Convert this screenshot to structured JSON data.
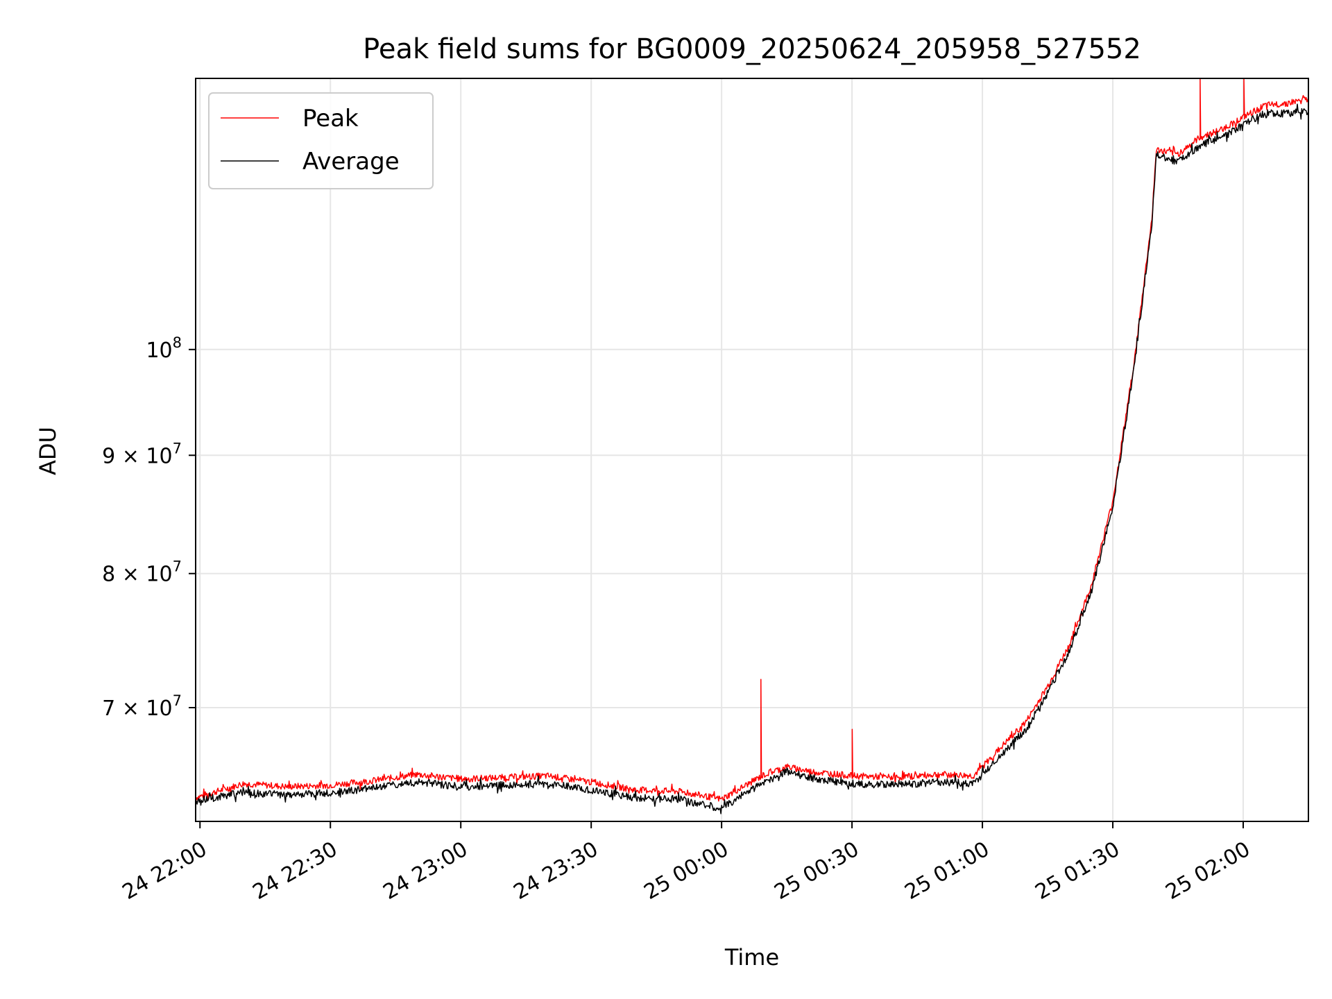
{
  "chart_data": {
    "type": "line",
    "title": "Peak field sums for BG0009_20250624_205958_527552",
    "xlabel": "Time",
    "ylabel": "ADU",
    "y_scale": "log",
    "ylim": [
      62500000,
      131000000
    ],
    "xlim": [
      "2025-06-24 21:59",
      "2025-06-25 02:15"
    ],
    "grid": true,
    "legend_position": "top-left",
    "x_ticks": [
      {
        "t": "2025-06-24 22:00",
        "label": "24 22:00"
      },
      {
        "t": "2025-06-24 22:30",
        "label": "24 22:30"
      },
      {
        "t": "2025-06-24 23:00",
        "label": "24 23:00"
      },
      {
        "t": "2025-06-24 23:30",
        "label": "24 23:30"
      },
      {
        "t": "2025-06-25 00:00",
        "label": "25 00:00"
      },
      {
        "t": "2025-06-25 00:30",
        "label": "25 00:30"
      },
      {
        "t": "2025-06-25 01:00",
        "label": "25 01:00"
      },
      {
        "t": "2025-06-25 01:30",
        "label": "25 01:30"
      },
      {
        "t": "2025-06-25 02:00",
        "label": "25 02:00"
      }
    ],
    "y_ticks": [
      {
        "value": 70000000,
        "mantissa": "7",
        "base": "10",
        "exp": "7"
      },
      {
        "value": 80000000,
        "mantissa": "8",
        "base": "10",
        "exp": "7"
      },
      {
        "value": 90000000,
        "mantissa": "9",
        "base": "10",
        "exp": "7"
      },
      {
        "value": 100000000,
        "mantissa": "",
        "base": "10",
        "exp": "8"
      }
    ],
    "series": [
      {
        "name": "Peak",
        "color": "#ff0000",
        "points": [
          [
            "2025-06-24 21:59",
            64000000
          ],
          [
            "2025-06-24 22:10",
            64900000
          ],
          [
            "2025-06-24 22:20",
            64700000
          ],
          [
            "2025-06-24 22:30",
            64800000
          ],
          [
            "2025-06-24 22:40",
            65100000
          ],
          [
            "2025-06-24 22:50",
            65500000
          ],
          [
            "2025-06-24 23:00",
            65200000
          ],
          [
            "2025-06-24 23:10",
            65300000
          ],
          [
            "2025-06-24 23:20",
            65400000
          ],
          [
            "2025-06-24 23:30",
            65000000
          ],
          [
            "2025-06-24 23:40",
            64500000
          ],
          [
            "2025-06-24 23:50",
            64400000
          ],
          [
            "2025-06-25 00:00",
            63900000
          ],
          [
            "2025-06-25 00:05",
            64700000
          ],
          [
            "2025-06-25 00:10",
            65500000
          ],
          [
            "2025-06-25 00:15",
            66000000
          ],
          [
            "2025-06-25 00:20",
            65700000
          ],
          [
            "2025-06-25 00:30",
            65400000
          ],
          [
            "2025-06-25 00:40",
            65300000
          ],
          [
            "2025-06-25 00:50",
            65500000
          ],
          [
            "2025-06-25 00:58",
            65400000
          ],
          [
            "2025-06-25 01:05",
            67500000
          ],
          [
            "2025-06-25 01:10",
            69000000
          ],
          [
            "2025-06-25 01:15",
            71500000
          ],
          [
            "2025-06-25 01:20",
            74500000
          ],
          [
            "2025-06-25 01:25",
            79000000
          ],
          [
            "2025-06-25 01:30",
            86000000
          ],
          [
            "2025-06-25 01:35",
            99000000
          ],
          [
            "2025-06-25 01:39",
            114000000
          ],
          [
            "2025-06-25 01:40",
            122000000
          ],
          [
            "2025-06-25 01:45",
            121500000
          ],
          [
            "2025-06-25 01:50",
            123500000
          ],
          [
            "2025-06-25 01:55",
            124500000
          ],
          [
            "2025-06-25 02:00",
            126000000
          ],
          [
            "2025-06-25 02:05",
            127500000
          ],
          [
            "2025-06-25 02:10",
            127800000
          ],
          [
            "2025-06-25 02:15",
            128300000
          ]
        ],
        "spikes": [
          [
            "2025-06-25 00:09",
            72000000
          ],
          [
            "2025-06-25 00:30",
            68500000
          ],
          [
            "2025-06-25 01:50",
            131000000
          ],
          [
            "2025-06-25 02:00",
            131000000
          ]
        ]
      },
      {
        "name": "Average",
        "color": "#000000",
        "points": [
          [
            "2025-06-24 21:59",
            63800000
          ],
          [
            "2025-06-24 22:10",
            64300000
          ],
          [
            "2025-06-24 22:20",
            64200000
          ],
          [
            "2025-06-24 22:30",
            64300000
          ],
          [
            "2025-06-24 22:40",
            64600000
          ],
          [
            "2025-06-24 22:50",
            65000000
          ],
          [
            "2025-06-24 23:00",
            64700000
          ],
          [
            "2025-06-24 23:10",
            64800000
          ],
          [
            "2025-06-24 23:20",
            64900000
          ],
          [
            "2025-06-24 23:30",
            64500000
          ],
          [
            "2025-06-24 23:40",
            64000000
          ],
          [
            "2025-06-24 23:50",
            63900000
          ],
          [
            "2025-06-25 00:00",
            63300000
          ],
          [
            "2025-06-25 00:05",
            64200000
          ],
          [
            "2025-06-25 00:10",
            65000000
          ],
          [
            "2025-06-25 00:15",
            65700000
          ],
          [
            "2025-06-25 00:20",
            65300000
          ],
          [
            "2025-06-25 00:30",
            64900000
          ],
          [
            "2025-06-25 00:40",
            64800000
          ],
          [
            "2025-06-25 00:50",
            65000000
          ],
          [
            "2025-06-25 00:58",
            64900000
          ],
          [
            "2025-06-25 01:05",
            67000000
          ],
          [
            "2025-06-25 01:10",
            68500000
          ],
          [
            "2025-06-25 01:15",
            71000000
          ],
          [
            "2025-06-25 01:20",
            74000000
          ],
          [
            "2025-06-25 01:25",
            78500000
          ],
          [
            "2025-06-25 01:30",
            85500000
          ],
          [
            "2025-06-25 01:35",
            98500000
          ],
          [
            "2025-06-25 01:39",
            113500000
          ],
          [
            "2025-06-25 01:40",
            121500000
          ],
          [
            "2025-06-25 01:45",
            120500000
          ],
          [
            "2025-06-25 01:50",
            122500000
          ],
          [
            "2025-06-25 01:55",
            123500000
          ],
          [
            "2025-06-25 02:00",
            125000000
          ],
          [
            "2025-06-25 02:05",
            126500000
          ],
          [
            "2025-06-25 02:10",
            126500000
          ],
          [
            "2025-06-25 02:15",
            126800000
          ]
        ],
        "spikes": []
      }
    ]
  }
}
